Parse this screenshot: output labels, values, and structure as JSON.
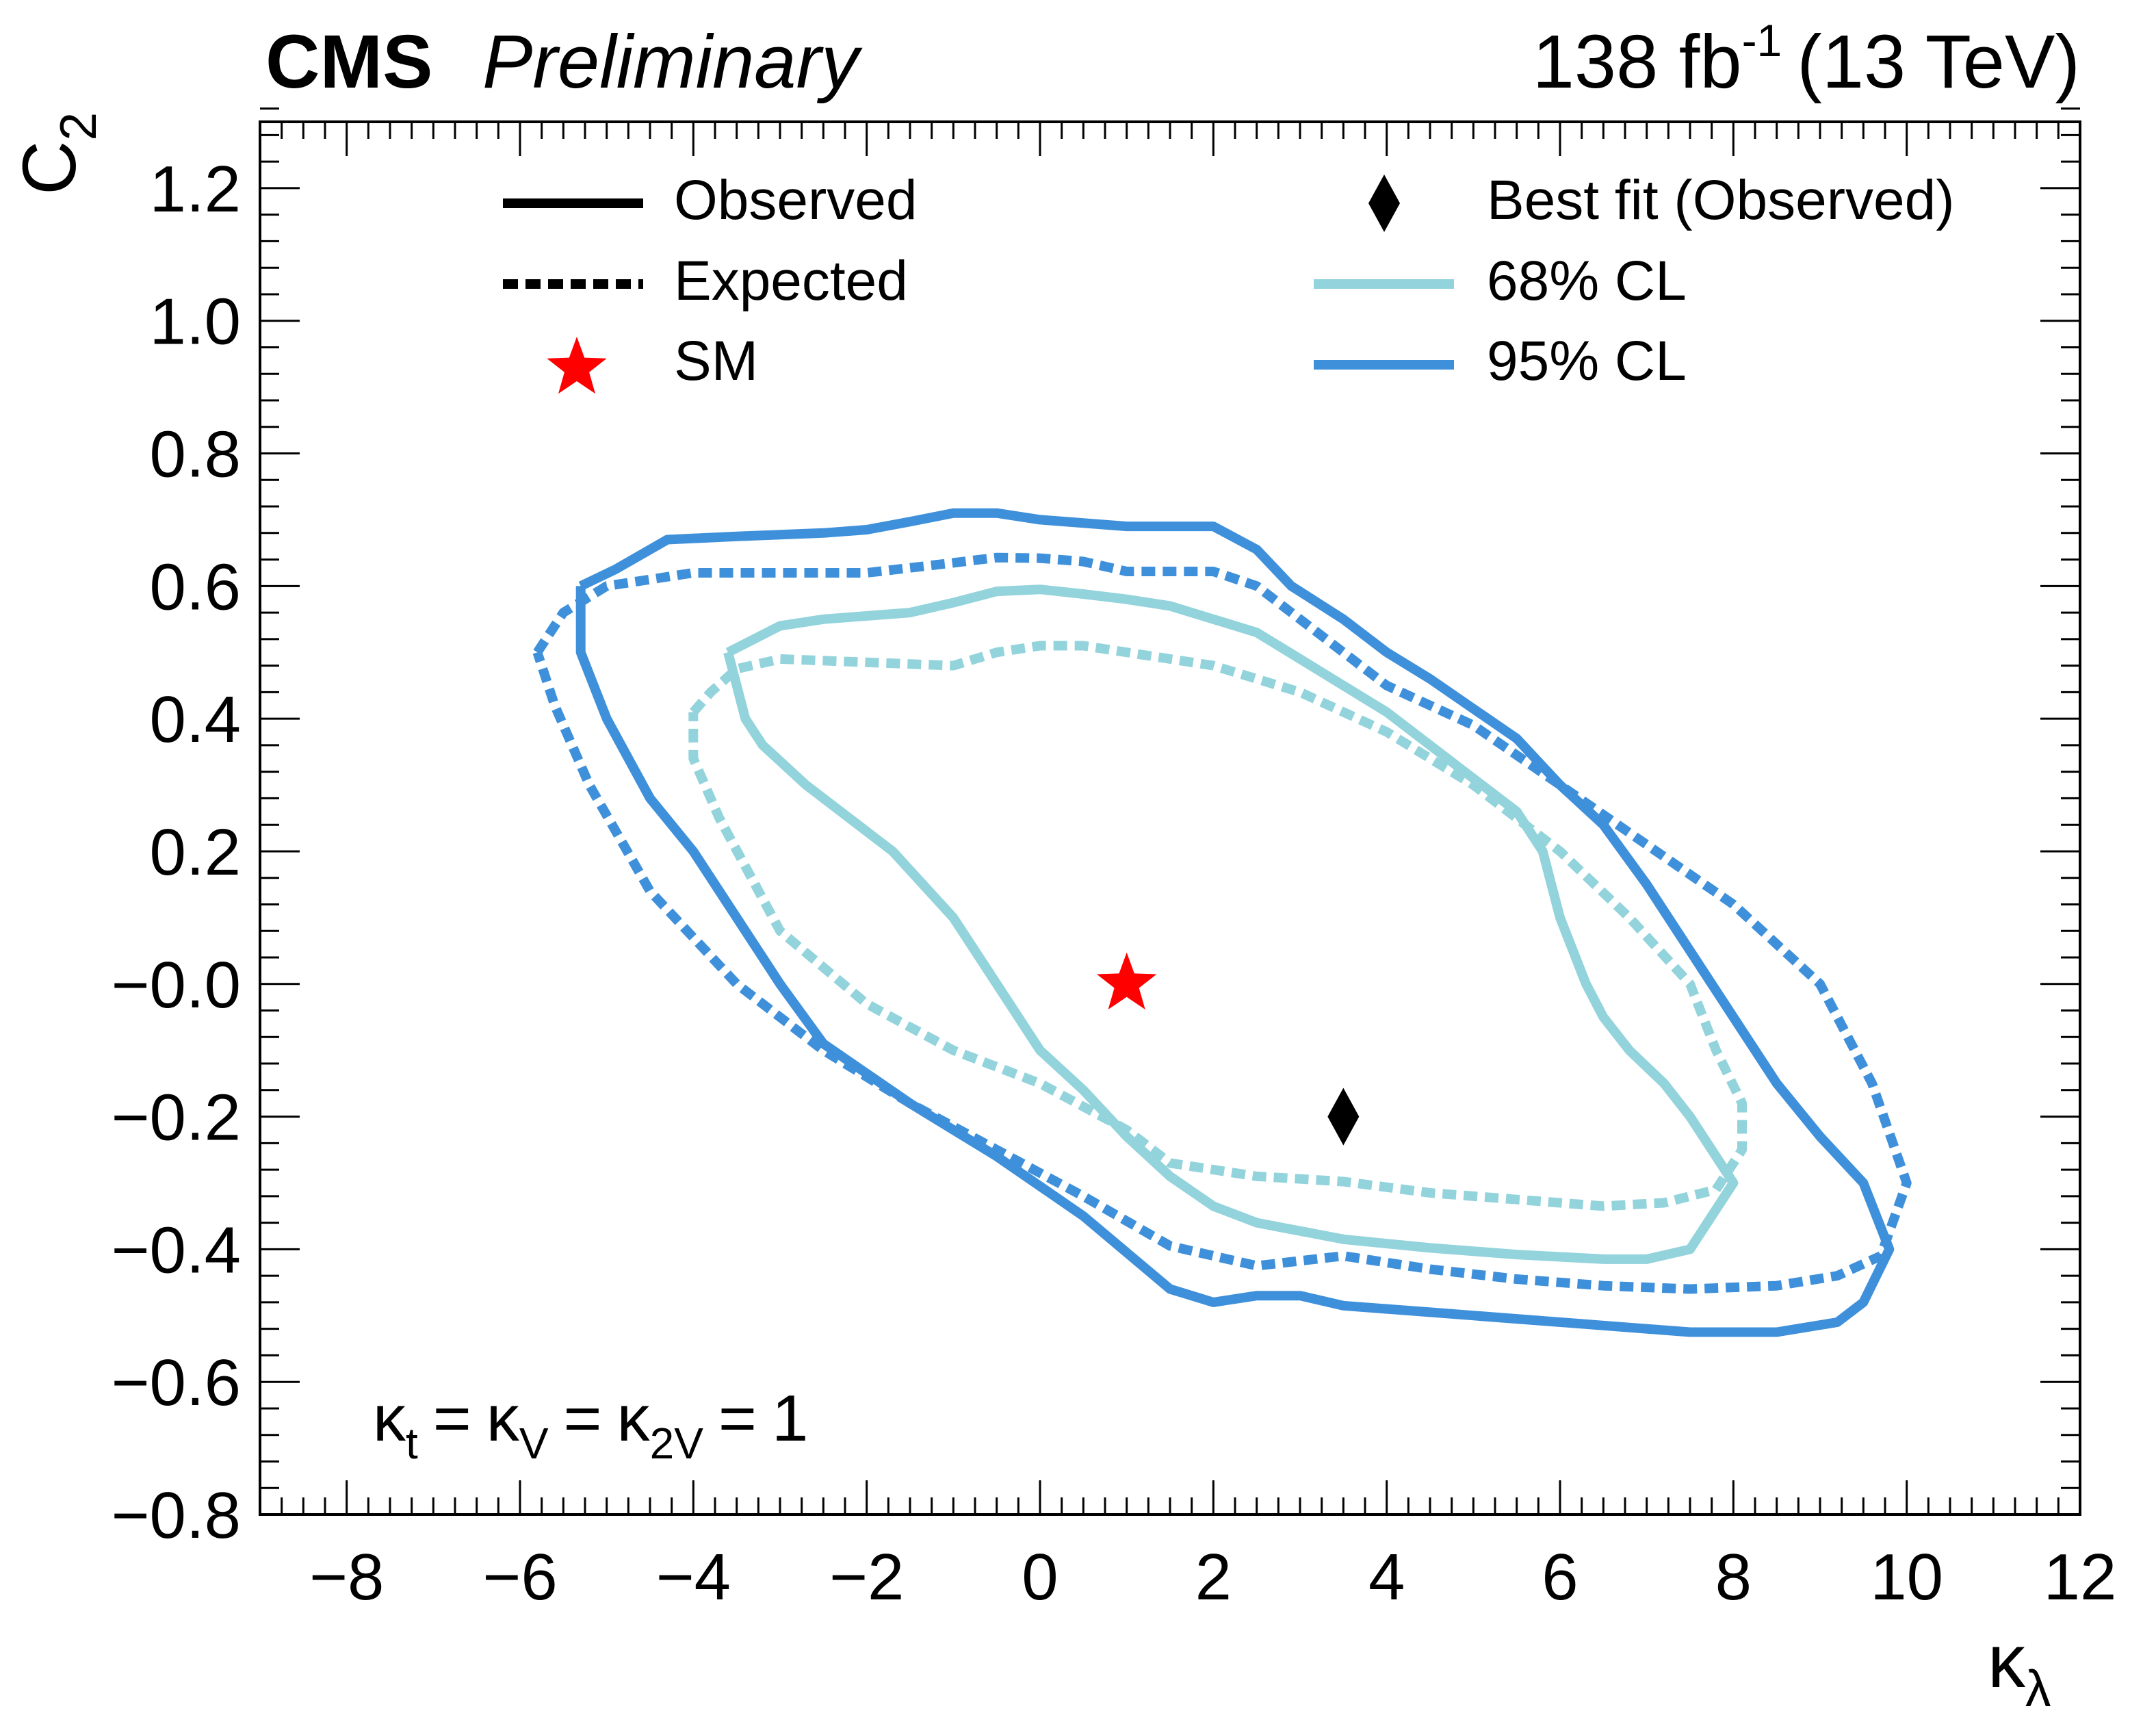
{
  "header": {
    "experiment": "CMS",
    "status": "Preliminary",
    "lumi_value": "138 fb",
    "lumi_exponent": "-1",
    "energy": "(13 TeV)"
  },
  "colors": {
    "cl68": "#93d3dc",
    "cl95": "#3f90da",
    "sm": "#ff0000",
    "best_fit": "#000000"
  },
  "chart_data": {
    "type": "line",
    "title": "CMS Preliminary",
    "xlabel": "κ",
    "xlabel_sub": "λ",
    "ylabel": "C",
    "ylabel_sub": "2",
    "xlim": [
      -9,
      12
    ],
    "ylim": [
      -0.8,
      1.3
    ],
    "x_ticks": [
      -8,
      -6,
      -4,
      -2,
      0,
      2,
      4,
      6,
      8,
      10,
      12
    ],
    "x_tick_labels": [
      "−8",
      "−6",
      "−4",
      "−2",
      "0",
      "2",
      "4",
      "6",
      "8",
      "10",
      "12"
    ],
    "y_ticks": [
      -0.8,
      -0.6,
      -0.4,
      -0.2,
      0.0,
      0.2,
      0.4,
      0.6,
      0.8,
      1.0,
      1.2
    ],
    "y_tick_labels": [
      "−0.8",
      "−0.6",
      "−0.4",
      "−0.2",
      "−0.0",
      "0.2",
      "0.4",
      "0.6",
      "0.8",
      "1.0",
      "1.2"
    ],
    "annotation": {
      "kt": "κ",
      "kt_sub": "t",
      "kv": "κ",
      "kv_sub": "V",
      "k2v": "κ",
      "k2v_sub": "2V",
      "eq": "=",
      "value": "1"
    },
    "legend": {
      "observed": "Observed",
      "expected": "Expected",
      "sm": "SM",
      "best_fit": "Best fit (Observed)",
      "cl68": "68% CL",
      "cl95": "95% CL"
    },
    "points": {
      "sm": {
        "x": 1.0,
        "y": 0.0
      },
      "best_fit": {
        "x": 3.5,
        "y": -0.2
      }
    },
    "series": [
      {
        "name": "95% CL Observed",
        "cl": "95",
        "style": "solid",
        "points": [
          [
            -5.3,
            0.6
          ],
          [
            -4.9,
            0.625
          ],
          [
            -4.3,
            0.67
          ],
          [
            -3.5,
            0.675
          ],
          [
            -2.5,
            0.68
          ],
          [
            -2.0,
            0.685
          ],
          [
            -1.5,
            0.697
          ],
          [
            -1.0,
            0.71
          ],
          [
            -0.5,
            0.71
          ],
          [
            0.0,
            0.7
          ],
          [
            1.0,
            0.69
          ],
          [
            2.0,
            0.69
          ],
          [
            2.5,
            0.655
          ],
          [
            2.9,
            0.6
          ],
          [
            3.5,
            0.55
          ],
          [
            4.0,
            0.5
          ],
          [
            4.5,
            0.46
          ],
          [
            5.0,
            0.415
          ],
          [
            5.5,
            0.37
          ],
          [
            6.0,
            0.3
          ],
          [
            6.5,
            0.24
          ],
          [
            7.0,
            0.15
          ],
          [
            7.5,
            0.05
          ],
          [
            8.0,
            -0.05
          ],
          [
            8.5,
            -0.15
          ],
          [
            9.0,
            -0.23
          ],
          [
            9.5,
            -0.3
          ],
          [
            9.8,
            -0.4
          ],
          [
            9.5,
            -0.48
          ],
          [
            9.2,
            -0.51
          ],
          [
            8.5,
            -0.525
          ],
          [
            7.5,
            -0.525
          ],
          [
            6.5,
            -0.515
          ],
          [
            5.5,
            -0.505
          ],
          [
            4.5,
            -0.495
          ],
          [
            3.5,
            -0.485
          ],
          [
            3.0,
            -0.47
          ],
          [
            2.5,
            -0.47
          ],
          [
            2.0,
            -0.48
          ],
          [
            1.5,
            -0.46
          ],
          [
            0.5,
            -0.35
          ],
          [
            -0.5,
            -0.26
          ],
          [
            -1.5,
            -0.18
          ],
          [
            -2.5,
            -0.09
          ],
          [
            -3.0,
            0.0
          ],
          [
            -3.5,
            0.1
          ],
          [
            -4.0,
            0.2
          ],
          [
            -4.5,
            0.28
          ],
          [
            -5.0,
            0.4
          ],
          [
            -5.3,
            0.5
          ],
          [
            -5.3,
            0.6
          ]
        ]
      },
      {
        "name": "95% CL Expected",
        "cl": "95",
        "style": "dashed",
        "points": [
          [
            -5.8,
            0.5
          ],
          [
            -5.5,
            0.56
          ],
          [
            -5.0,
            0.6
          ],
          [
            -4.0,
            0.62
          ],
          [
            -3.0,
            0.62
          ],
          [
            -2.0,
            0.62
          ],
          [
            -1.0,
            0.635
          ],
          [
            -0.5,
            0.643
          ],
          [
            0.0,
            0.642
          ],
          [
            0.5,
            0.637
          ],
          [
            1.0,
            0.622
          ],
          [
            2.0,
            0.622
          ],
          [
            2.5,
            0.6
          ],
          [
            3.0,
            0.55
          ],
          [
            4.0,
            0.45
          ],
          [
            5.0,
            0.39
          ],
          [
            6.0,
            0.3
          ],
          [
            7.0,
            0.21
          ],
          [
            8.0,
            0.12
          ],
          [
            9.0,
            0.0
          ],
          [
            9.6,
            -0.15
          ],
          [
            10.0,
            -0.3
          ],
          [
            9.7,
            -0.41
          ],
          [
            9.2,
            -0.44
          ],
          [
            8.5,
            -0.455
          ],
          [
            7.5,
            -0.46
          ],
          [
            6.5,
            -0.455
          ],
          [
            5.5,
            -0.445
          ],
          [
            4.5,
            -0.43
          ],
          [
            3.5,
            -0.41
          ],
          [
            2.5,
            -0.425
          ],
          [
            1.5,
            -0.395
          ],
          [
            0.5,
            -0.32
          ],
          [
            -0.5,
            -0.25
          ],
          [
            -1.5,
            -0.18
          ],
          [
            -2.5,
            -0.1
          ],
          [
            -3.5,
            0.0
          ],
          [
            -4.5,
            0.14
          ],
          [
            -5.2,
            0.3
          ],
          [
            -5.6,
            0.42
          ],
          [
            -5.8,
            0.5
          ]
        ]
      },
      {
        "name": "68% CL Observed",
        "cl": "68",
        "style": "solid",
        "points": [
          [
            -3.6,
            0.5
          ],
          [
            -3.0,
            0.54
          ],
          [
            -2.5,
            0.55
          ],
          [
            -1.5,
            0.56
          ],
          [
            -1.0,
            0.575
          ],
          [
            -0.5,
            0.592
          ],
          [
            0.0,
            0.595
          ],
          [
            0.5,
            0.588
          ],
          [
            1.0,
            0.58
          ],
          [
            1.5,
            0.57
          ],
          [
            2.0,
            0.55
          ],
          [
            2.5,
            0.53
          ],
          [
            3.0,
            0.49
          ],
          [
            3.5,
            0.45
          ],
          [
            4.0,
            0.41
          ],
          [
            4.5,
            0.36
          ],
          [
            5.0,
            0.31
          ],
          [
            5.5,
            0.26
          ],
          [
            5.8,
            0.2
          ],
          [
            6.0,
            0.1
          ],
          [
            6.3,
            0.0
          ],
          [
            6.5,
            -0.05
          ],
          [
            6.8,
            -0.1
          ],
          [
            7.2,
            -0.15
          ],
          [
            7.5,
            -0.2
          ],
          [
            8.0,
            -0.3
          ],
          [
            7.5,
            -0.4
          ],
          [
            7.0,
            -0.415
          ],
          [
            6.5,
            -0.415
          ],
          [
            5.5,
            -0.408
          ],
          [
            4.5,
            -0.398
          ],
          [
            3.5,
            -0.385
          ],
          [
            2.5,
            -0.36
          ],
          [
            2.0,
            -0.335
          ],
          [
            1.5,
            -0.29
          ],
          [
            1.0,
            -0.23
          ],
          [
            0.5,
            -0.16
          ],
          [
            0.0,
            -0.1
          ],
          [
            -0.5,
            0.0
          ],
          [
            -1.0,
            0.1
          ],
          [
            -1.7,
            0.2
          ],
          [
            -2.2,
            0.25
          ],
          [
            -2.7,
            0.3
          ],
          [
            -3.2,
            0.36
          ],
          [
            -3.4,
            0.4
          ],
          [
            -3.6,
            0.5
          ]
        ]
      },
      {
        "name": "68% CL Expected",
        "cl": "68",
        "style": "dashed",
        "points": [
          [
            -4.0,
            0.41
          ],
          [
            -3.8,
            0.44
          ],
          [
            -3.5,
            0.475
          ],
          [
            -3.0,
            0.49
          ],
          [
            -2.0,
            0.485
          ],
          [
            -1.0,
            0.48
          ],
          [
            -0.5,
            0.5
          ],
          [
            0.0,
            0.51
          ],
          [
            0.5,
            0.51
          ],
          [
            1.0,
            0.5
          ],
          [
            2.0,
            0.48
          ],
          [
            3.0,
            0.44
          ],
          [
            4.0,
            0.38
          ],
          [
            5.0,
            0.3
          ],
          [
            6.0,
            0.2
          ],
          [
            6.8,
            0.1
          ],
          [
            7.5,
            0.0
          ],
          [
            7.8,
            -0.1
          ],
          [
            8.1,
            -0.18
          ],
          [
            8.1,
            -0.25
          ],
          [
            7.8,
            -0.31
          ],
          [
            7.2,
            -0.33
          ],
          [
            6.5,
            -0.335
          ],
          [
            5.5,
            -0.325
          ],
          [
            4.5,
            -0.315
          ],
          [
            3.5,
            -0.298
          ],
          [
            2.5,
            -0.29
          ],
          [
            1.5,
            -0.27
          ],
          [
            1.0,
            -0.22
          ],
          [
            0.0,
            -0.15
          ],
          [
            -1.0,
            -0.1
          ],
          [
            -2.0,
            -0.03
          ],
          [
            -3.0,
            0.08
          ],
          [
            -3.7,
            0.25
          ],
          [
            -4.0,
            0.34
          ],
          [
            -4.0,
            0.41
          ]
        ]
      }
    ]
  }
}
